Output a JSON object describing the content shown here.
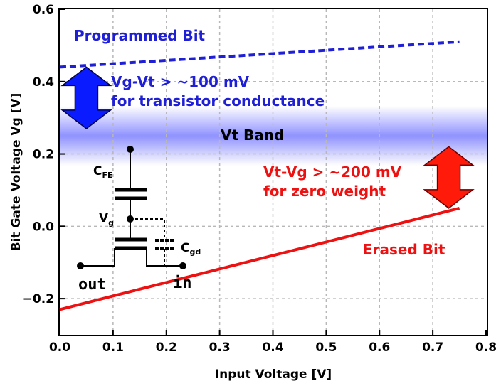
{
  "chart_data": {
    "type": "line",
    "title": "",
    "xlabel": "Input Voltage [V]",
    "ylabel": "Bit Gate Voltage Vg [V]",
    "xlim": [
      0.0,
      0.8
    ],
    "ylim": [
      -0.3,
      0.6
    ],
    "xticks": [
      "0.0",
      "0.1",
      "0.2",
      "0.3",
      "0.4",
      "0.5",
      "0.6",
      "0.7",
      "0.8"
    ],
    "yticks": [
      "−0.2",
      "0.0",
      "0.2",
      "0.4",
      "0.6"
    ],
    "xtick_values": [
      0.0,
      0.1,
      0.2,
      0.3,
      0.4,
      0.5,
      0.6,
      0.7,
      0.8
    ],
    "ytick_values": [
      -0.2,
      0.0,
      0.2,
      0.4,
      0.6
    ],
    "grid": true,
    "series": [
      {
        "name": "Programmed Bit",
        "style": "dashed",
        "color": "#1f1fd6",
        "x": [
          0.0,
          0.75
        ],
        "y": [
          0.44,
          0.51
        ]
      },
      {
        "name": "Erased Bit",
        "style": "solid",
        "color": "#ee1111",
        "x": [
          0.0,
          0.75
        ],
        "y": [
          -0.23,
          0.05
        ]
      }
    ],
    "band": {
      "label": "Vt Band",
      "center": 0.25,
      "color": "#8a8cff"
    },
    "annotations": {
      "programmed_label": "Programmed Bit",
      "erased_label": "Erased Bit",
      "blue_line1": "Vg-Vt > ~100 mV",
      "blue_line2": "for transistor conductance",
      "red_line1": "Vt-Vg > ~200 mV",
      "red_line2": "for zero weight",
      "blue_arrow": {
        "x": 0.05,
        "y_top": 0.44,
        "y_bottom": 0.27
      },
      "red_arrow": {
        "x": 0.73,
        "y_top": 0.22,
        "y_bottom": 0.05
      }
    }
  },
  "circuit": {
    "cfe_main": "C",
    "cfe_sub": "FE",
    "vg_main": "V",
    "vg_sub": "g",
    "cgd_main": "C",
    "cgd_sub": "gd",
    "out_label": "out",
    "in_label": "in"
  }
}
